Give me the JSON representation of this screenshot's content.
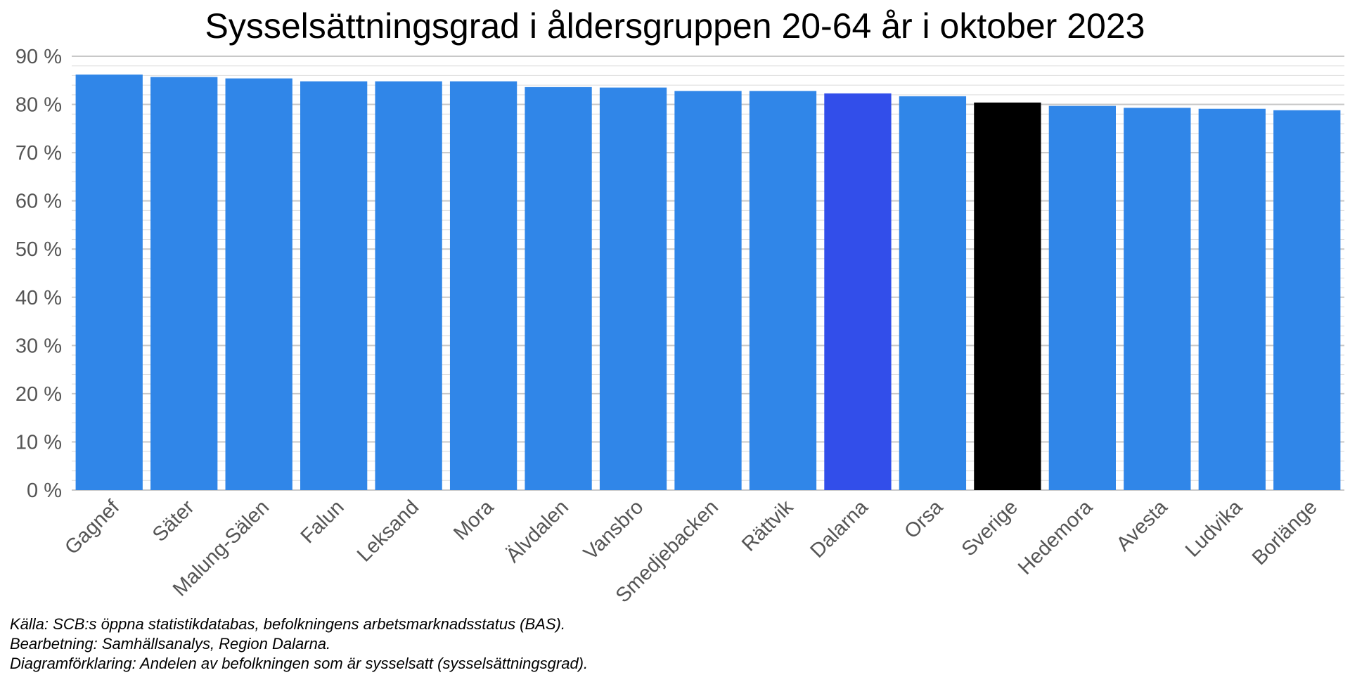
{
  "chart_data": {
    "type": "bar",
    "title": "Sysselsättningsgrad i åldersgruppen 20-64 år i oktober 2023",
    "xlabel": "",
    "ylabel": "",
    "ylim": [
      0,
      90
    ],
    "yticks": [
      0,
      10,
      20,
      30,
      40,
      50,
      60,
      70,
      80,
      90
    ],
    "ytick_labels": [
      "0 %",
      "10 %",
      "20 %",
      "30 %",
      "40 %",
      "50 %",
      "60 %",
      "70 %",
      "80 %",
      "90 %"
    ],
    "grid": true,
    "legend": "none",
    "categories": [
      "Gagnef",
      "Säter",
      "Malung-Sälen",
      "Falun",
      "Leksand",
      "Mora",
      "Älvdalen",
      "Vansbro",
      "Smedjebacken",
      "Rättvik",
      "Dalarna",
      "Orsa",
      "Sverige",
      "Hedemora",
      "Avesta",
      "Ludvika",
      "Borlänge"
    ],
    "values": [
      86.2,
      85.7,
      85.4,
      84.8,
      84.8,
      84.8,
      83.6,
      83.5,
      82.8,
      82.8,
      82.3,
      81.7,
      80.4,
      79.7,
      79.3,
      79.1,
      78.8
    ],
    "colors": {
      "default": "#3086E8",
      "Dalarna": "#324EEA",
      "Sverige": "#000000"
    }
  },
  "caption": {
    "source": "Källa: SCB:s öppna statistikdatabas, befolkningens arbetsmarknadsstatus (BAS).",
    "processing": "Bearbetning: Samhällsanalys, Region Dalarna.",
    "explanation": "Diagramförklaring: Andelen av befolkningen som är sysselsatt (sysselsättningsgrad)."
  }
}
